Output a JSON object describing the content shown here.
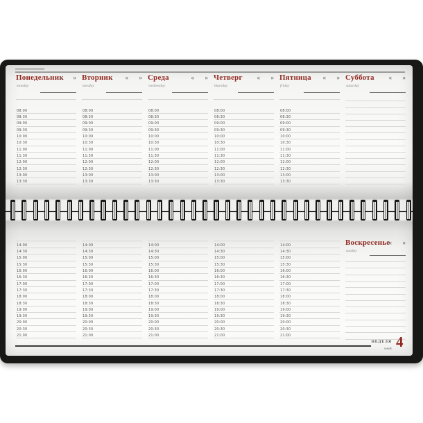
{
  "planner": {
    "week_label": {
      "ru": "НЕДЕЛЯ",
      "en": "week",
      "number": "4"
    },
    "chevron_left": "«",
    "chevron_right": "»",
    "days_top": [
      {
        "name": "Понедельник",
        "sub": "monday",
        "has_times": true
      },
      {
        "name": "Вторник",
        "sub": "tuesday",
        "has_times": true
      },
      {
        "name": "Среда",
        "sub": "wednesday",
        "has_times": true
      },
      {
        "name": "Четверг",
        "sub": "thursday",
        "has_times": true
      },
      {
        "name": "Пятница",
        "sub": "friday",
        "has_times": true
      },
      {
        "name": "Суббота",
        "sub": "saturday",
        "has_times": false
      }
    ],
    "day_bottom": {
      "name": "Воскресенье",
      "sub": "sunday",
      "has_times": false
    },
    "times_morning": [
      "08:00",
      "08:30",
      "09:00",
      "09:30",
      "10:00",
      "10:30",
      "11:00",
      "11:30",
      "12:00",
      "12:30",
      "13:00",
      "13:30"
    ],
    "times_afternoon": [
      "14:00",
      "14:30",
      "15:00",
      "15:30",
      "16:00",
      "16:30",
      "17:00",
      "17:30",
      "18:00",
      "18:30",
      "19:00",
      "19:30",
      "20:00",
      "20:30",
      "21:00"
    ],
    "colors": {
      "accent": "#8f271f",
      "rule": "#d7d7d5",
      "frame": "#181816"
    }
  }
}
